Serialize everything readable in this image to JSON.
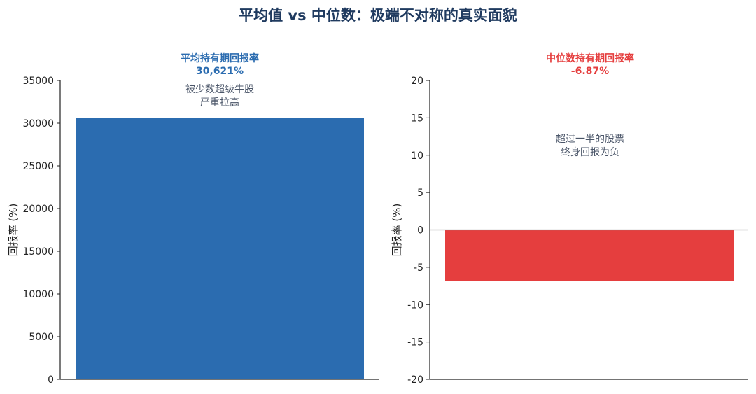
{
  "figure": {
    "title": "平均值 vs 中位数：极端不对称的真实面貌"
  },
  "chart_data": [
    {
      "type": "bar",
      "title": "平均持有期回报率",
      "value_label": "30,621%",
      "title_color": "#2b6cb0",
      "ylabel": "回报率 (%)",
      "ylim": [
        0,
        35000
      ],
      "yticks": [
        0,
        5000,
        10000,
        15000,
        20000,
        25000,
        30000,
        35000
      ],
      "categories": [
        ""
      ],
      "values": [
        30621
      ],
      "bar_color": "#2b6cb0",
      "annotation": [
        "被少数超级牛股",
        "严重拉高"
      ],
      "zero_line": false,
      "grid": false
    },
    {
      "type": "bar",
      "title": "中位数持有期回报率",
      "value_label": "-6.87%",
      "title_color": "#e53e3e",
      "ylabel": "回报率 (%)",
      "ylim": [
        -20,
        20
      ],
      "yticks": [
        -20,
        -15,
        -10,
        -5,
        0,
        5,
        10,
        15,
        20
      ],
      "categories": [
        ""
      ],
      "values": [
        -6.87
      ],
      "bar_color": "#e53e3e",
      "annotation": [
        "超过一半的股票",
        "终身回报为负"
      ],
      "zero_line": true,
      "grid": false
    }
  ]
}
